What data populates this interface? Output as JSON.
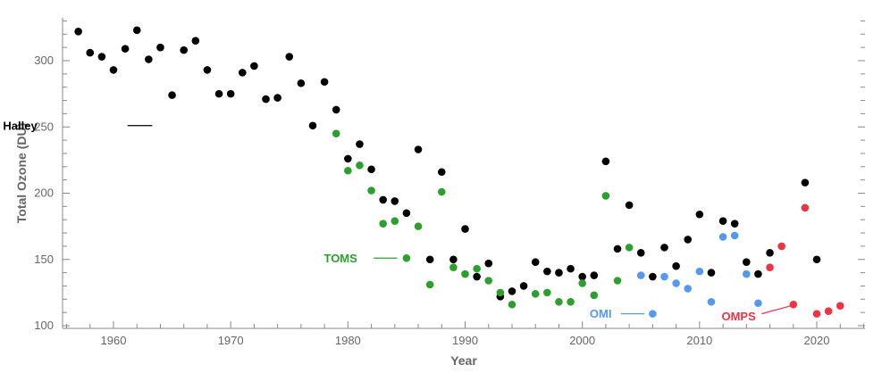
{
  "chart_data": {
    "type": "scatter",
    "title": "",
    "xlabel": "Year",
    "ylabel": "Total Ozone (DU)",
    "xlim": [
      1955,
      2024
    ],
    "ylim": [
      100,
      330
    ],
    "x_ticks": [
      1960,
      1970,
      1980,
      1990,
      2000,
      2010,
      2020
    ],
    "y_ticks": [
      100,
      150,
      200,
      250,
      300
    ],
    "grid": false,
    "legend": "inline",
    "series": [
      {
        "name": "Halley",
        "color": "#000000",
        "points": [
          [
            1957,
            322
          ],
          [
            1958,
            306
          ],
          [
            1959,
            303
          ],
          [
            1960,
            293
          ],
          [
            1961,
            309
          ],
          [
            1962,
            323
          ],
          [
            1963,
            301
          ],
          [
            1964,
            310
          ],
          [
            1965,
            274
          ],
          [
            1966,
            308
          ],
          [
            1967,
            315
          ],
          [
            1968,
            293
          ],
          [
            1969,
            275
          ],
          [
            1970,
            275
          ],
          [
            1971,
            291
          ],
          [
            1972,
            296
          ],
          [
            1973,
            271
          ],
          [
            1974,
            272
          ],
          [
            1975,
            303
          ],
          [
            1976,
            283
          ],
          [
            1977,
            251
          ],
          [
            1978,
            284
          ],
          [
            1979,
            263
          ],
          [
            1980,
            226
          ],
          [
            1981,
            237
          ],
          [
            1982,
            218
          ],
          [
            1983,
            195
          ],
          [
            1984,
            194
          ],
          [
            1985,
            185
          ],
          [
            1986,
            233
          ],
          [
            1987,
            150
          ],
          [
            1988,
            216
          ],
          [
            1989,
            150
          ],
          [
            1990,
            173
          ],
          [
            1991,
            137
          ],
          [
            1992,
            147
          ],
          [
            1993,
            122
          ],
          [
            1994,
            126
          ],
          [
            1995,
            130
          ],
          [
            1996,
            148
          ],
          [
            1997,
            141
          ],
          [
            1998,
            140
          ],
          [
            1999,
            143
          ],
          [
            2000,
            137
          ],
          [
            2001,
            138
          ],
          [
            2002,
            224
          ],
          [
            2003,
            158
          ],
          [
            2004,
            191
          ],
          [
            2005,
            155
          ],
          [
            2006,
            137
          ],
          [
            2007,
            159
          ],
          [
            2008,
            145
          ],
          [
            2009,
            165
          ],
          [
            2010,
            184
          ],
          [
            2011,
            140
          ],
          [
            2012,
            179
          ],
          [
            2013,
            177
          ],
          [
            2014,
            148
          ],
          [
            2015,
            139
          ],
          [
            2016,
            155
          ],
          [
            2019,
            208
          ],
          [
            2020,
            150
          ]
        ]
      },
      {
        "name": "TOMS",
        "color": "#2ca02c",
        "points": [
          [
            1979,
            245
          ],
          [
            1980,
            217
          ],
          [
            1981,
            221
          ],
          [
            1982,
            202
          ],
          [
            1983,
            177
          ],
          [
            1984,
            179
          ],
          [
            1985,
            151
          ],
          [
            1986,
            175
          ],
          [
            1987,
            131
          ],
          [
            1988,
            201
          ],
          [
            1989,
            144
          ],
          [
            1990,
            139
          ],
          [
            1991,
            143
          ],
          [
            1992,
            134
          ],
          [
            1993,
            125
          ],
          [
            1994,
            116
          ],
          [
            1996,
            124
          ],
          [
            1997,
            125
          ],
          [
            1998,
            118
          ],
          [
            1999,
            118
          ],
          [
            2000,
            132
          ],
          [
            2001,
            123
          ],
          [
            2002,
            198
          ],
          [
            2003,
            134
          ],
          [
            2004,
            159
          ]
        ]
      },
      {
        "name": "OMI",
        "color": "#5599ee",
        "points": [
          [
            2005,
            138
          ],
          [
            2006,
            109
          ],
          [
            2007,
            137
          ],
          [
            2008,
            132
          ],
          [
            2009,
            128
          ],
          [
            2010,
            141
          ],
          [
            2011,
            118
          ],
          [
            2012,
            167
          ],
          [
            2013,
            168
          ],
          [
            2014,
            139
          ],
          [
            2015,
            117
          ]
        ]
      },
      {
        "name": "OMPS",
        "color": "#ee3344",
        "points": [
          [
            2016,
            144
          ],
          [
            2017,
            160
          ],
          [
            2018,
            116
          ],
          [
            2019,
            189
          ],
          [
            2020,
            109
          ],
          [
            2021,
            111
          ],
          [
            2022,
            115
          ]
        ]
      }
    ]
  }
}
